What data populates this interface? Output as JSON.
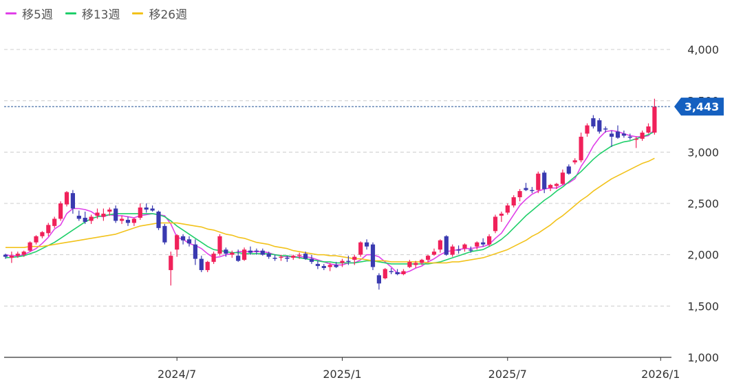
{
  "legend": [
    {
      "label": "移5週",
      "color": "#e040e8"
    },
    {
      "label": "移13週",
      "color": "#1fcf6a"
    },
    {
      "label": "移26週",
      "color": "#f2c21a"
    }
  ],
  "colors": {
    "up": "#f0215a",
    "down": "#3a3ab0",
    "price_line": "#1e4f94",
    "badge": "#1560c0",
    "grid": "#cccccc",
    "axis": "#333333"
  },
  "chart_data": {
    "type": "candlestick",
    "ylim": [
      1000,
      4000
    ],
    "y_ticks": [
      1000,
      1500,
      2000,
      2500,
      3000,
      3500,
      4000
    ],
    "y_tick_labels": [
      "1,000",
      "1,500",
      "2,000",
      "2,500",
      "3,000",
      "3,500",
      "4,000"
    ],
    "x_labels": [
      {
        "label": "2024/7",
        "index": 28
      },
      {
        "label": "2025/1",
        "index": 55
      },
      {
        "label": "2025/7",
        "index": 82
      },
      {
        "label": "2026/1",
        "index": 107
      }
    ],
    "last_price": 3443,
    "last_price_label": "3,443",
    "ohlc": [
      [
        2000,
        2010,
        1960,
        1980
      ],
      [
        1970,
        2030,
        1920,
        1990
      ],
      [
        1990,
        2030,
        1970,
        2010
      ],
      [
        2000,
        2040,
        1980,
        2030
      ],
      [
        2040,
        2130,
        2030,
        2120
      ],
      [
        2120,
        2190,
        2100,
        2180
      ],
      [
        2180,
        2230,
        2160,
        2220
      ],
      [
        2210,
        2310,
        2180,
        2290
      ],
      [
        2280,
        2370,
        2260,
        2350
      ],
      [
        2350,
        2520,
        2330,
        2500
      ],
      [
        2490,
        2620,
        2470,
        2610
      ],
      [
        2600,
        2630,
        2400,
        2450
      ],
      [
        2380,
        2430,
        2330,
        2350
      ],
      [
        2360,
        2420,
        2300,
        2320
      ],
      [
        2330,
        2390,
        2300,
        2370
      ],
      [
        2380,
        2450,
        2350,
        2410
      ],
      [
        2370,
        2450,
        2330,
        2400
      ],
      [
        2420,
        2460,
        2380,
        2440
      ],
      [
        2450,
        2480,
        2310,
        2330
      ],
      [
        2330,
        2380,
        2300,
        2350
      ],
      [
        2340,
        2370,
        2280,
        2310
      ],
      [
        2310,
        2360,
        2280,
        2350
      ],
      [
        2360,
        2500,
        2340,
        2460
      ],
      [
        2460,
        2500,
        2410,
        2440
      ],
      [
        2450,
        2480,
        2420,
        2430
      ],
      [
        2420,
        2430,
        2240,
        2260
      ],
      [
        2280,
        2300,
        2100,
        2120
      ],
      [
        1850,
        2030,
        1700,
        1990
      ],
      [
        2050,
        2200,
        1980,
        2190
      ],
      [
        2180,
        2200,
        2100,
        2140
      ],
      [
        2150,
        2180,
        2080,
        2110
      ],
      [
        2100,
        2150,
        1900,
        1960
      ],
      [
        1960,
        1990,
        1830,
        1850
      ],
      [
        1850,
        1940,
        1830,
        1930
      ],
      [
        1930,
        2030,
        1910,
        2010
      ],
      [
        2010,
        2200,
        1990,
        2180
      ],
      [
        2050,
        2070,
        1980,
        2010
      ],
      [
        2000,
        2040,
        1970,
        2020
      ],
      [
        1990,
        2050,
        1930,
        1940
      ],
      [
        1950,
        2070,
        1940,
        2050
      ],
      [
        2040,
        2080,
        2000,
        2020
      ],
      [
        2040,
        2060,
        2000,
        2030
      ],
      [
        2040,
        2060,
        1990,
        2000
      ],
      [
        2010,
        2030,
        1960,
        1980
      ],
      [
        1970,
        2000,
        1940,
        1960
      ],
      [
        1970,
        2000,
        1940,
        1980
      ],
      [
        1970,
        1990,
        1930,
        1960
      ],
      [
        1970,
        2000,
        1950,
        1990
      ],
      [
        1990,
        2020,
        1960,
        2000
      ],
      [
        2010,
        2030,
        1950,
        1960
      ],
      [
        1960,
        2000,
        1910,
        1930
      ],
      [
        1910,
        1940,
        1860,
        1890
      ],
      [
        1890,
        1910,
        1850,
        1870
      ],
      [
        1880,
        1920,
        1840,
        1900
      ],
      [
        1900,
        1930,
        1870,
        1880
      ],
      [
        1920,
        1960,
        1880,
        1940
      ],
      [
        1940,
        1990,
        1900,
        1930
      ],
      [
        1950,
        2000,
        1900,
        1980
      ],
      [
        2000,
        2130,
        1980,
        2120
      ],
      [
        2120,
        2150,
        2050,
        2080
      ],
      [
        2100,
        2120,
        1850,
        1880
      ],
      [
        1800,
        1820,
        1660,
        1720
      ],
      [
        1770,
        1870,
        1760,
        1860
      ],
      [
        1840,
        1870,
        1810,
        1830
      ],
      [
        1830,
        1860,
        1800,
        1810
      ],
      [
        1810,
        1860,
        1800,
        1840
      ],
      [
        1880,
        1950,
        1870,
        1930
      ],
      [
        1900,
        1940,
        1870,
        1920
      ],
      [
        1920,
        1960,
        1900,
        1950
      ],
      [
        1950,
        2000,
        1930,
        1990
      ],
      [
        2000,
        2060,
        1990,
        2030
      ],
      [
        2050,
        2150,
        2020,
        2140
      ],
      [
        2180,
        2190,
        1990,
        2000
      ],
      [
        2000,
        2100,
        1980,
        2080
      ],
      [
        2050,
        2090,
        2010,
        2040
      ],
      [
        2060,
        2110,
        2030,
        2100
      ],
      [
        2050,
        2080,
        2020,
        2040
      ],
      [
        2080,
        2130,
        2050,
        2120
      ],
      [
        2120,
        2160,
        2080,
        2100
      ],
      [
        2100,
        2200,
        2080,
        2180
      ],
      [
        2230,
        2390,
        2210,
        2370
      ],
      [
        2380,
        2420,
        2320,
        2400
      ],
      [
        2410,
        2500,
        2390,
        2480
      ],
      [
        2480,
        2580,
        2460,
        2560
      ],
      [
        2560,
        2640,
        2520,
        2620
      ],
      [
        2650,
        2700,
        2620,
        2630
      ],
      [
        2630,
        2660,
        2600,
        2620
      ],
      [
        2630,
        2810,
        2600,
        2790
      ],
      [
        2800,
        2820,
        2600,
        2640
      ],
      [
        2650,
        2690,
        2620,
        2680
      ],
      [
        2670,
        2700,
        2640,
        2690
      ],
      [
        2690,
        2830,
        2680,
        2800
      ],
      [
        2860,
        2880,
        2780,
        2790
      ],
      [
        2900,
        2940,
        2880,
        2920
      ],
      [
        2920,
        3190,
        2900,
        3150
      ],
      [
        3180,
        3280,
        3150,
        3260
      ],
      [
        3330,
        3360,
        3230,
        3250
      ],
      [
        3310,
        3330,
        3180,
        3200
      ],
      [
        3230,
        3250,
        3190,
        3220
      ],
      [
        3180,
        3210,
        3050,
        3150
      ],
      [
        3200,
        3260,
        3130,
        3140
      ],
      [
        3180,
        3210,
        3140,
        3160
      ],
      [
        3150,
        3180,
        3120,
        3140
      ],
      [
        3120,
        3150,
        3040,
        3130
      ],
      [
        3130,
        3210,
        3110,
        3190
      ],
      [
        3190,
        3280,
        3180,
        3250
      ],
      [
        3190,
        3520,
        3170,
        3443
      ]
    ],
    "series": [
      {
        "name": "移5週",
        "values": [
          2000,
          1990,
          1990,
          2000,
          2030,
          2060,
          2110,
          2170,
          2250,
          2290,
          2400,
          2450,
          2450,
          2440,
          2420,
          2380,
          2370,
          2390,
          2380,
          2380,
          2370,
          2360,
          2380,
          2390,
          2400,
          2390,
          2380,
          2300,
          2170,
          2150,
          2110,
          2090,
          2060,
          2010,
          1970,
          1980,
          2000,
          2010,
          2030,
          2030,
          2030,
          2030,
          2030,
          2020,
          2000,
          1990,
          1980,
          1980,
          1980,
          1980,
          1970,
          1950,
          1930,
          1910,
          1900,
          1900,
          1920,
          1920,
          1950,
          2000,
          2000,
          1980,
          1930,
          1880,
          1820,
          1820,
          1840,
          1870,
          1890,
          1930,
          1960,
          2000,
          2030,
          2040,
          2050,
          2060,
          2060,
          2070,
          2080,
          2100,
          2160,
          2210,
          2300,
          2390,
          2480,
          2540,
          2590,
          2620,
          2640,
          2650,
          2650,
          2680,
          2700,
          2740,
          2860,
          2950,
          3060,
          3140,
          3200,
          3210,
          3200,
          3180,
          3160,
          3150,
          3150,
          3160,
          3220
        ]
      },
      {
        "name": "移13週",
        "values": [
          1970,
          1975,
          1980,
          1990,
          2010,
          2030,
          2060,
          2090,
          2120,
          2160,
          2200,
          2240,
          2280,
          2320,
          2350,
          2370,
          2380,
          2390,
          2400,
          2400,
          2400,
          2400,
          2400,
          2400,
          2400,
          2390,
          2370,
          2330,
          2280,
          2240,
          2200,
          2160,
          2120,
          2080,
          2050,
          2040,
          2030,
          2020,
          2020,
          2010,
          2010,
          2010,
          2010,
          2010,
          2000,
          1990,
          1990,
          1980,
          1970,
          1960,
          1950,
          1940,
          1930,
          1930,
          1920,
          1920,
          1920,
          1920,
          1930,
          1940,
          1940,
          1930,
          1920,
          1910,
          1910,
          1910,
          1910,
          1910,
          1910,
          1910,
          1920,
          1930,
          1950,
          1970,
          1990,
          2010,
          2030,
          2040,
          2050,
          2080,
          2110,
          2150,
          2200,
          2260,
          2320,
          2380,
          2430,
          2480,
          2530,
          2570,
          2620,
          2660,
          2710,
          2760,
          2810,
          2870,
          2930,
          2980,
          3020,
          3060,
          3080,
          3100,
          3110,
          3130,
          3150,
          3170,
          3200
        ]
      },
      {
        "name": "移26週",
        "values": [
          2070,
          2070,
          2070,
          2070,
          2080,
          2080,
          2080,
          2090,
          2100,
          2110,
          2120,
          2130,
          2140,
          2150,
          2160,
          2170,
          2180,
          2190,
          2200,
          2220,
          2240,
          2260,
          2280,
          2290,
          2300,
          2310,
          2310,
          2310,
          2310,
          2300,
          2290,
          2280,
          2270,
          2250,
          2240,
          2220,
          2200,
          2190,
          2170,
          2160,
          2140,
          2120,
          2110,
          2100,
          2080,
          2070,
          2060,
          2040,
          2030,
          2020,
          2010,
          2000,
          2000,
          1990,
          1990,
          1980,
          1970,
          1960,
          1960,
          1950,
          1940,
          1940,
          1940,
          1930,
          1930,
          1930,
          1930,
          1930,
          1930,
          1920,
          1920,
          1920,
          1920,
          1930,
          1930,
          1940,
          1950,
          1960,
          1970,
          1990,
          2010,
          2030,
          2050,
          2080,
          2110,
          2140,
          2180,
          2210,
          2250,
          2290,
          2340,
          2380,
          2430,
          2480,
          2530,
          2570,
          2620,
          2660,
          2700,
          2740,
          2770,
          2800,
          2830,
          2860,
          2890,
          2910,
          2940
        ]
      }
    ]
  }
}
